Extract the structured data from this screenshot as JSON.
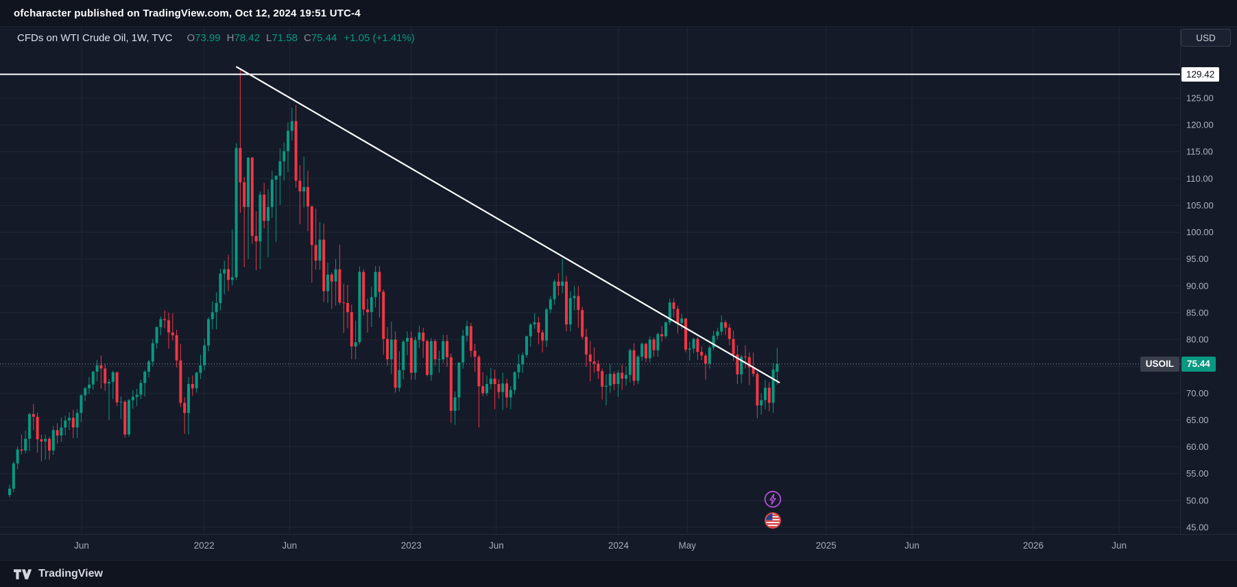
{
  "topbar": {
    "text": "ofcharacter published on TradingView.com, Oct 12, 2024 19:51 UTC-4"
  },
  "legend": {
    "title": "CFDs on WTI Crude Oil, 1W, TVC",
    "open_label": "O",
    "open": "73.99",
    "high_label": "H",
    "high": "78.42",
    "low_label": "L",
    "low": "71.58",
    "close_label": "C",
    "close": "75.44",
    "change": "+1.05 (+1.41%)"
  },
  "currency_button": "USD",
  "price_axis": {
    "level_badge": "129.42",
    "symbol_badge": "USOIL",
    "price_badge": "75.44"
  },
  "footer": {
    "brand": "TradingView"
  },
  "colors": {
    "up": "#089981",
    "down": "#f23645",
    "line_white": "#ffffff",
    "boost_purple": "#b44fd8",
    "flag_ring_red": "#e84d4d"
  },
  "chart_data": {
    "type": "candlestick",
    "symbol": "USOIL",
    "description": "CFDs on WTI Crude Oil",
    "exchange": "TVC",
    "timeframe": "1W",
    "currency": "USD",
    "last_ohlc": {
      "open": 73.99,
      "high": 78.42,
      "low": 71.58,
      "close": 75.44,
      "change": 1.05,
      "change_pct": 1.41
    },
    "last_price": 75.44,
    "horizontal_line": 129.42,
    "trendline": {
      "from": {
        "week": 57.1,
        "price": 130.8
      },
      "to": {
        "week": 193.5,
        "price": 72.0
      }
    },
    "y_ticks": [
      125,
      120,
      115,
      110,
      105,
      100,
      95,
      90,
      85,
      80,
      75,
      70,
      65,
      60,
      55,
      50,
      45
    ],
    "ylim": [
      43.7,
      138.3
    ],
    "x_ticks": [
      {
        "label": "Jun",
        "week": 18.1
      },
      {
        "label": "2022",
        "week": 48.9
      },
      {
        "label": "Jun",
        "week": 70.4
      },
      {
        "label": "2023",
        "week": 101.0
      },
      {
        "label": "Jun",
        "week": 122.4
      },
      {
        "label": "2024",
        "week": 153.1
      },
      {
        "label": "May",
        "week": 170.4
      },
      {
        "label": "2025",
        "week": 205.3
      },
      {
        "label": "Jun",
        "week": 226.9
      },
      {
        "label": "2026",
        "week": 257.4
      },
      {
        "label": "Jun",
        "week": 279.0
      }
    ],
    "grid": true,
    "candles": [
      [
        51.0,
        53.0,
        50.6,
        52.2
      ],
      [
        52.2,
        57.3,
        51.6,
        56.9
      ],
      [
        56.9,
        60.0,
        55.8,
        59.5
      ],
      [
        59.5,
        62.3,
        58.6,
        59.3
      ],
      [
        59.3,
        63.0,
        58.8,
        61.5
      ],
      [
        61.5,
        66.4,
        59.2,
        66.1
      ],
      [
        66.1,
        68.0,
        63.1,
        65.6
      ],
      [
        65.6,
        66.4,
        58.9,
        61.4
      ],
      [
        61.4,
        62.3,
        57.3,
        61.0
      ],
      [
        61.0,
        62.3,
        57.6,
        61.5
      ],
      [
        61.5,
        61.9,
        57.6,
        59.3
      ],
      [
        59.3,
        63.9,
        58.5,
        63.1
      ],
      [
        63.1,
        64.4,
        60.6,
        62.1
      ],
      [
        62.1,
        65.5,
        60.9,
        63.6
      ],
      [
        63.6,
        65.8,
        62.1,
        64.9
      ],
      [
        64.9,
        66.4,
        63.1,
        65.4
      ],
      [
        65.4,
        66.9,
        61.6,
        63.6
      ],
      [
        63.6,
        67.0,
        61.6,
        66.3
      ],
      [
        66.3,
        69.8,
        64.6,
        69.6
      ],
      [
        69.6,
        71.2,
        68.5,
        70.9
      ],
      [
        70.9,
        73.0,
        69.8,
        71.6
      ],
      [
        71.6,
        74.2,
        70.6,
        74.0
      ],
      [
        74.0,
        76.2,
        72.2,
        75.2
      ],
      [
        75.2,
        77.0,
        70.8,
        74.6
      ],
      [
        74.6,
        75.5,
        70.4,
        71.8
      ],
      [
        71.8,
        72.6,
        65.0,
        72.1
      ],
      [
        72.1,
        74.2,
        68.9,
        73.9
      ],
      [
        73.9,
        74.0,
        67.6,
        68.3
      ],
      [
        68.3,
        69.4,
        65.2,
        68.4
      ],
      [
        68.4,
        68.7,
        61.7,
        62.3
      ],
      [
        62.3,
        68.9,
        61.9,
        68.7
      ],
      [
        68.7,
        70.6,
        67.1,
        69.3
      ],
      [
        69.3,
        70.8,
        67.6,
        69.7
      ],
      [
        69.7,
        72.5,
        68.9,
        71.9
      ],
      [
        71.9,
        74.3,
        69.4,
        74.0
      ],
      [
        74.0,
        76.2,
        72.9,
        75.9
      ],
      [
        75.9,
        80.1,
        75.0,
        79.3
      ],
      [
        79.3,
        82.5,
        78.3,
        82.3
      ],
      [
        82.3,
        84.3,
        80.8,
        83.8
      ],
      [
        83.8,
        85.4,
        82.1,
        83.6
      ],
      [
        83.6,
        85.0,
        78.3,
        81.3
      ],
      [
        81.3,
        84.9,
        79.8,
        80.8
      ],
      [
        80.8,
        81.8,
        74.8,
        76.1
      ],
      [
        76.1,
        79.2,
        67.4,
        68.2
      ],
      [
        68.2,
        69.2,
        62.4,
        66.3
      ],
      [
        66.3,
        73.0,
        62.3,
        71.7
      ],
      [
        71.7,
        73.3,
        69.5,
        70.9
      ],
      [
        70.9,
        74.0,
        70.1,
        73.8
      ],
      [
        73.8,
        77.2,
        72.6,
        75.2
      ],
      [
        75.2,
        80.2,
        74.3,
        78.9
      ],
      [
        78.9,
        84.2,
        77.8,
        83.8
      ],
      [
        83.8,
        87.1,
        81.9,
        85.1
      ],
      [
        85.1,
        88.8,
        81.9,
        86.8
      ],
      [
        86.8,
        93.2,
        85.4,
        92.3
      ],
      [
        92.3,
        94.7,
        88.4,
        93.1
      ],
      [
        93.1,
        95.8,
        89.0,
        91.1
      ],
      [
        91.1,
        100.5,
        90.1,
        91.6
      ],
      [
        91.6,
        116.6,
        91.1,
        115.7
      ],
      [
        115.7,
        130.5,
        103.6,
        109.3
      ],
      [
        109.3,
        110.3,
        93.5,
        104.7
      ],
      [
        104.7,
        114.0,
        95.0,
        113.9
      ],
      [
        113.9,
        114.0,
        97.8,
        99.3
      ],
      [
        99.3,
        103.9,
        92.9,
        98.3
      ],
      [
        98.3,
        107.6,
        93.1,
        107.0
      ],
      [
        107.0,
        109.2,
        100.7,
        102.1
      ],
      [
        102.1,
        108.0,
        95.3,
        104.7
      ],
      [
        104.7,
        111.4,
        102.7,
        109.8
      ],
      [
        109.8,
        110.6,
        98.2,
        110.5
      ],
      [
        110.5,
        115.6,
        105.1,
        113.2
      ],
      [
        113.2,
        116.7,
        109.6,
        115.1
      ],
      [
        115.1,
        120.5,
        111.2,
        118.9
      ],
      [
        118.9,
        123.2,
        117.1,
        120.7
      ],
      [
        120.7,
        123.7,
        108.3,
        109.6
      ],
      [
        109.6,
        112.5,
        101.5,
        107.6
      ],
      [
        107.6,
        114.1,
        104.6,
        108.4
      ],
      [
        108.4,
        111.5,
        100.2,
        104.8
      ],
      [
        104.8,
        105.0,
        90.6,
        97.6
      ],
      [
        97.6,
        104.4,
        93.0,
        94.7
      ],
      [
        94.7,
        101.9,
        93.0,
        98.6
      ],
      [
        98.6,
        101.6,
        87.0,
        89.0
      ],
      [
        89.0,
        94.3,
        86.8,
        92.1
      ],
      [
        92.1,
        92.5,
        85.7,
        90.8
      ],
      [
        90.8,
        95.0,
        86.3,
        93.1
      ],
      [
        93.1,
        97.7,
        86.5,
        86.9
      ],
      [
        86.9,
        90.4,
        81.2,
        86.8
      ],
      [
        86.8,
        90.2,
        82.1,
        85.1
      ],
      [
        85.1,
        86.5,
        76.3,
        78.7
      ],
      [
        78.7,
        83.5,
        76.3,
        79.5
      ],
      [
        79.5,
        93.6,
        79.1,
        92.6
      ],
      [
        92.6,
        93.1,
        84.5,
        85.6
      ],
      [
        85.6,
        87.6,
        81.3,
        85.1
      ],
      [
        85.1,
        89.8,
        82.3,
        87.9
      ],
      [
        87.9,
        93.7,
        86.0,
        92.6
      ],
      [
        92.6,
        93.7,
        84.1,
        88.9
      ],
      [
        88.9,
        89.3,
        77.2,
        80.1
      ],
      [
        80.1,
        82.3,
        75.1,
        76.3
      ],
      [
        76.3,
        83.3,
        73.6,
        80.0
      ],
      [
        80.0,
        81.5,
        70.1,
        71.0
      ],
      [
        71.0,
        77.8,
        70.3,
        74.3
      ],
      [
        74.3,
        79.9,
        72.6,
        79.6
      ],
      [
        79.6,
        81.5,
        77.1,
        80.3
      ],
      [
        80.3,
        81.5,
        72.5,
        73.8
      ],
      [
        73.8,
        80.5,
        72.5,
        79.9
      ],
      [
        79.9,
        82.6,
        78.4,
        81.3
      ],
      [
        81.3,
        82.2,
        76.6,
        79.7
      ],
      [
        79.7,
        80.0,
        73.1,
        73.4
      ],
      [
        73.4,
        80.3,
        72.3,
        79.7
      ],
      [
        79.7,
        80.1,
        75.1,
        76.3
      ],
      [
        76.3,
        77.9,
        73.8,
        76.3
      ],
      [
        76.3,
        80.9,
        75.6,
        79.7
      ],
      [
        79.7,
        80.9,
        74.9,
        76.7
      ],
      [
        76.7,
        77.4,
        64.4,
        66.7
      ],
      [
        66.7,
        70.3,
        64.1,
        69.2
      ],
      [
        69.2,
        75.7,
        66.8,
        75.7
      ],
      [
        75.7,
        81.8,
        74.6,
        80.7
      ],
      [
        80.7,
        83.5,
        79.6,
        82.5
      ],
      [
        82.5,
        83.1,
        76.7,
        77.9
      ],
      [
        77.9,
        79.2,
        74.0,
        76.8
      ],
      [
        76.8,
        77.1,
        63.6,
        71.3
      ],
      [
        71.3,
        73.9,
        69.4,
        70.0
      ],
      [
        70.0,
        73.3,
        69.5,
        71.7
      ],
      [
        71.7,
        74.7,
        70.7,
        72.7
      ],
      [
        72.7,
        74.4,
        67.0,
        71.7
      ],
      [
        71.7,
        72.6,
        69.0,
        70.2
      ],
      [
        70.2,
        73.8,
        66.8,
        71.8
      ],
      [
        71.8,
        72.7,
        67.3,
        69.2
      ],
      [
        69.2,
        71.3,
        67.0,
        70.6
      ],
      [
        70.6,
        74.1,
        69.8,
        73.9
      ],
      [
        73.9,
        77.3,
        72.7,
        75.4
      ],
      [
        75.4,
        77.6,
        73.8,
        77.1
      ],
      [
        77.1,
        80.7,
        76.6,
        80.6
      ],
      [
        80.6,
        83.0,
        78.7,
        82.8
      ],
      [
        82.8,
        84.9,
        82.0,
        83.2
      ],
      [
        83.2,
        84.2,
        79.1,
        81.3
      ],
      [
        81.3,
        81.8,
        77.6,
        79.8
      ],
      [
        79.8,
        85.9,
        78.6,
        85.6
      ],
      [
        85.6,
        88.1,
        84.9,
        87.5
      ],
      [
        87.5,
        91.2,
        86.5,
        90.8
      ],
      [
        90.8,
        92.4,
        88.2,
        90.0
      ],
      [
        90.0,
        95.0,
        88.6,
        90.8
      ],
      [
        90.8,
        91.8,
        81.5,
        82.8
      ],
      [
        82.8,
        89.0,
        81.5,
        87.7
      ],
      [
        87.7,
        89.9,
        85.4,
        88.1
      ],
      [
        88.1,
        89.9,
        82.2,
        85.5
      ],
      [
        85.5,
        86.1,
        80.0,
        80.5
      ],
      [
        80.5,
        82.0,
        74.9,
        77.2
      ],
      [
        77.2,
        79.7,
        72.2,
        75.9
      ],
      [
        75.9,
        78.5,
        73.8,
        75.5
      ],
      [
        75.5,
        76.1,
        72.6,
        74.1
      ],
      [
        74.1,
        74.6,
        68.8,
        71.2
      ],
      [
        71.2,
        73.5,
        67.7,
        71.4
      ],
      [
        71.4,
        75.4,
        70.1,
        73.6
      ],
      [
        73.6,
        74.1,
        70.6,
        71.7
      ],
      [
        71.7,
        74.3,
        69.3,
        73.8
      ],
      [
        73.8,
        75.3,
        70.6,
        72.7
      ],
      [
        72.7,
        75.0,
        71.4,
        73.4
      ],
      [
        73.4,
        78.3,
        72.0,
        78.0
      ],
      [
        78.0,
        79.3,
        71.4,
        72.3
      ],
      [
        72.3,
        77.1,
        71.7,
        76.8
      ],
      [
        76.8,
        79.5,
        76.0,
        79.2
      ],
      [
        79.2,
        79.4,
        75.8,
        76.5
      ],
      [
        76.5,
        80.6,
        75.7,
        80.0
      ],
      [
        80.0,
        80.4,
        76.8,
        78.0
      ],
      [
        78.0,
        81.3,
        76.8,
        81.0
      ],
      [
        81.0,
        82.5,
        79.6,
        80.6
      ],
      [
        80.6,
        83.4,
        80.2,
        83.2
      ],
      [
        83.2,
        87.6,
        82.7,
        86.9
      ],
      [
        86.9,
        87.7,
        84.1,
        85.7
      ],
      [
        85.7,
        86.3,
        81.1,
        83.1
      ],
      [
        83.1,
        84.8,
        81.9,
        83.9
      ],
      [
        83.9,
        84.0,
        77.6,
        78.1
      ],
      [
        78.1,
        79.6,
        76.1,
        78.3
      ],
      [
        78.3,
        80.3,
        77.4,
        80.1
      ],
      [
        80.1,
        80.4,
        76.2,
        77.7
      ],
      [
        77.7,
        78.7,
        76.2,
        77.0
      ],
      [
        77.0,
        77.4,
        72.5,
        75.5
      ],
      [
        75.5,
        78.9,
        74.6,
        78.5
      ],
      [
        78.5,
        81.6,
        77.9,
        80.7
      ],
      [
        80.7,
        82.2,
        80.0,
        81.5
      ],
      [
        81.5,
        84.5,
        80.8,
        83.2
      ],
      [
        83.2,
        83.6,
        80.8,
        82.2
      ],
      [
        82.2,
        82.9,
        78.9,
        80.1
      ],
      [
        80.1,
        81.7,
        76.0,
        77.2
      ],
      [
        77.2,
        78.9,
        71.7,
        73.5
      ],
      [
        73.5,
        77.2,
        71.8,
        76.8
      ],
      [
        76.8,
        78.9,
        74.6,
        76.7
      ],
      [
        76.7,
        77.6,
        71.5,
        74.8
      ],
      [
        74.8,
        77.6,
        73.1,
        73.6
      ],
      [
        73.6,
        74.0,
        65.3,
        67.7
      ],
      [
        67.7,
        70.0,
        66.0,
        68.7
      ],
      [
        68.7,
        72.5,
        67.0,
        71.0
      ],
      [
        71.0,
        72.0,
        66.6,
        68.2
      ],
      [
        68.2,
        75.6,
        66.3,
        74.4
      ],
      [
        73.99,
        78.42,
        71.58,
        75.44
      ]
    ]
  }
}
